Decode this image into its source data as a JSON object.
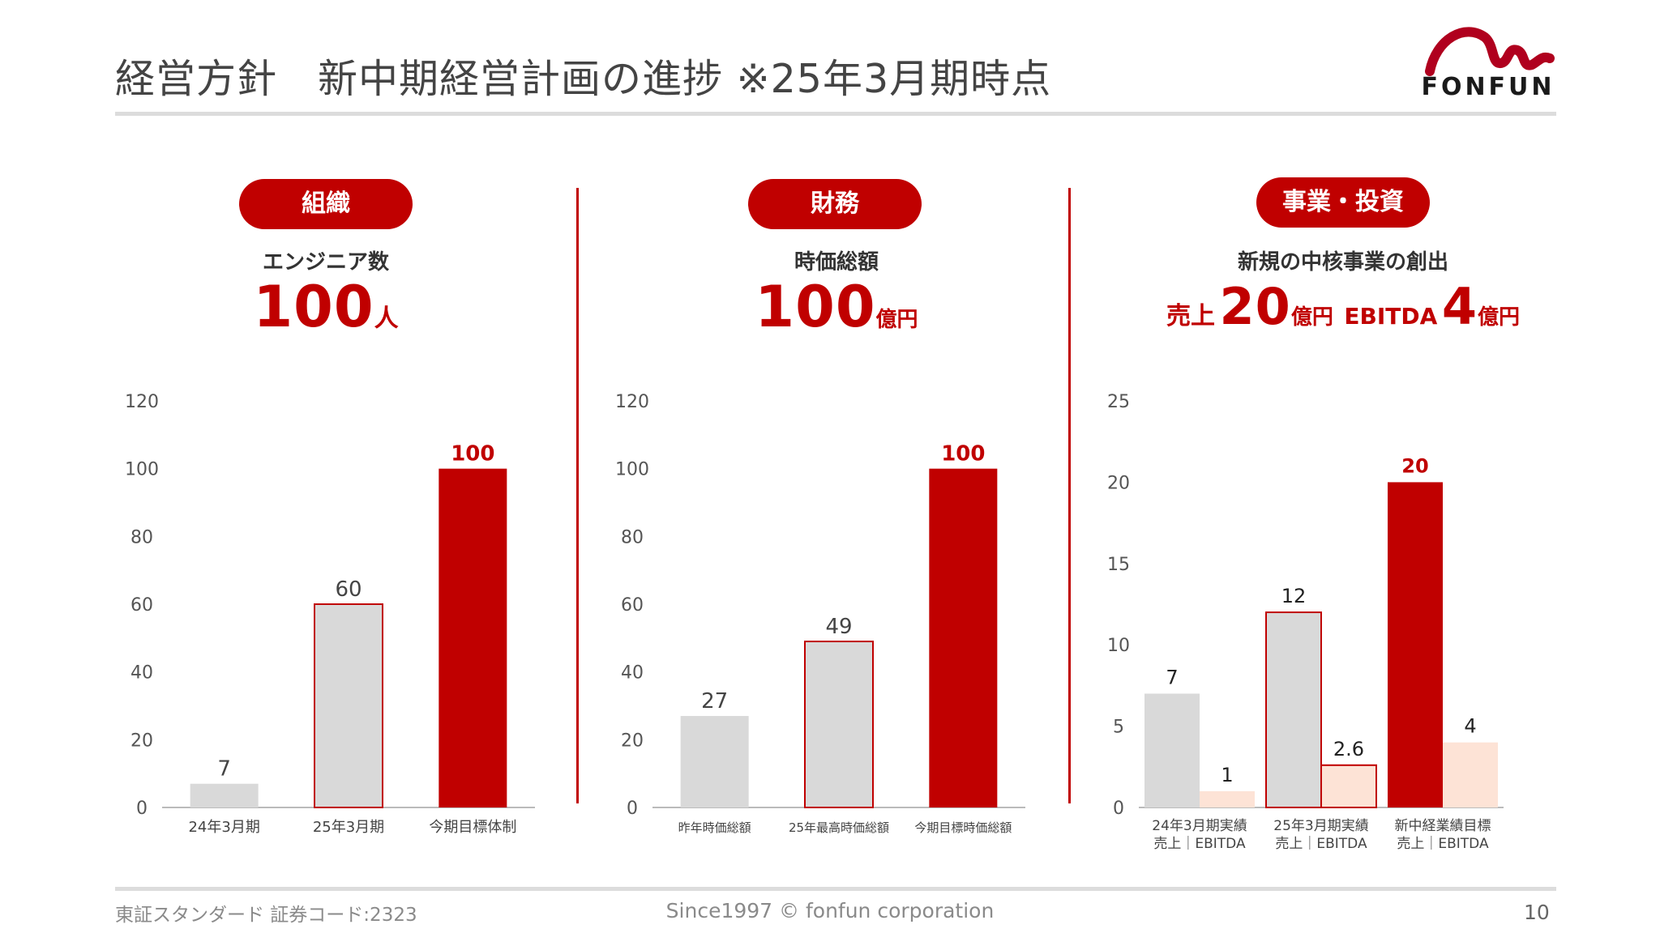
{
  "header": {
    "title": "経営方針　新中期経営計画の進捗 ※25年3月期時点",
    "logo_text": "FONFUN"
  },
  "colors": {
    "accent": "#c00000",
    "gray_bar": "#d9d9d9",
    "peach_bar": "#fde3d6",
    "divider": "#c00000"
  },
  "sections": {
    "org": {
      "pill": "組織",
      "subtitle": "エンジニア数",
      "big_number": "100",
      "unit": "人"
    },
    "finance": {
      "pill": "財務",
      "subtitle": "時価総額",
      "big_number": "100",
      "unit": "億円"
    },
    "business": {
      "pill": "事業・投資",
      "subtitle": "新規の中核事業の創出",
      "sales_label": "売上",
      "sales_number": "20",
      "sales_unit": "億円",
      "ebitda_label": "EBITDA",
      "ebitda_number": "4",
      "ebitda_unit": "億円"
    }
  },
  "chart_data": [
    {
      "type": "bar",
      "title": "エンジニア数",
      "categories": [
        "24年3月期",
        "25年3月期",
        "今期目標体制"
      ],
      "values": [
        7,
        60,
        100
      ],
      "styles": [
        "gray",
        "outline",
        "red"
      ],
      "ylim": [
        0,
        120
      ],
      "yticks": [
        0,
        20,
        40,
        60,
        80,
        100,
        120
      ]
    },
    {
      "type": "bar",
      "title": "時価総額",
      "categories": [
        "昨年時価総額",
        "25年最高時価総額",
        "今期目標時価総額"
      ],
      "values": [
        27,
        49,
        100
      ],
      "styles": [
        "gray",
        "outline",
        "red"
      ],
      "ylim": [
        0,
        120
      ],
      "yticks": [
        0,
        20,
        40,
        60,
        80,
        100,
        120
      ]
    },
    {
      "type": "bar",
      "title": "新規の中核事業の創出",
      "categories": [
        [
          "24年3月期実績",
          "売上｜EBITDA"
        ],
        [
          "25年3月期実績",
          "売上｜EBITDA"
        ],
        [
          "新中経業績目標",
          "売上｜EBITDA"
        ]
      ],
      "series": [
        {
          "name": "売上",
          "values": [
            7,
            12,
            20
          ],
          "styles": [
            "gray",
            "outline",
            "red"
          ]
        },
        {
          "name": "EBITDA",
          "values": [
            1,
            2.6,
            4
          ],
          "styles": [
            "peach",
            "peach-outline",
            "peach"
          ]
        }
      ],
      "ylim": [
        0,
        25
      ],
      "yticks": [
        0,
        5,
        10,
        15,
        20,
        25
      ]
    }
  ],
  "footer": {
    "left": "東証スタンダード 証券コード:2323",
    "center": "Since1997 © fonfun corporation",
    "page": "10"
  }
}
